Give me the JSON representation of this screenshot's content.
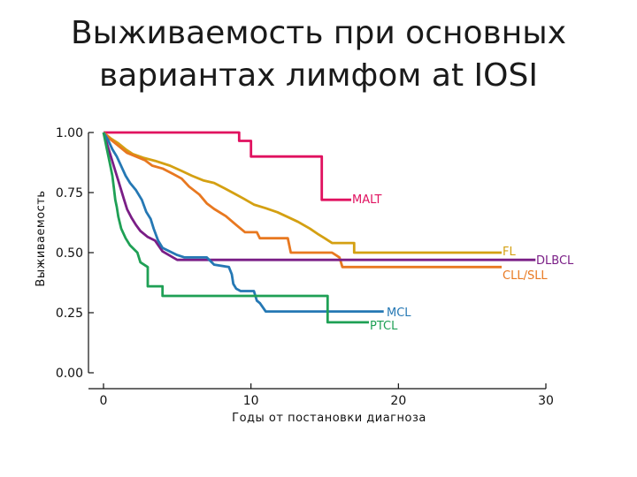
{
  "page": {
    "title_line1": "Выживаемость при основных",
    "title_line2": "вариантах лимфом at IOSI"
  },
  "chart_data": {
    "type": "line",
    "title": "Выживаемость при основных вариантах лимфом at IOSI",
    "xlabel": "Годы от постановки диагноза",
    "ylabel": "Выживаемость",
    "xlim": [
      0,
      30
    ],
    "ylim": [
      0,
      1
    ],
    "x_ticks": [
      0,
      10,
      20,
      30
    ],
    "x_tick_labels": [
      "0",
      "10",
      "20",
      "30"
    ],
    "y_ticks": [
      0,
      0.25,
      0.5,
      0.75,
      1
    ],
    "y_tick_labels": [
      "0.00",
      "0.25",
      "0.50",
      "0.75",
      "1.00"
    ],
    "grid": false,
    "series": [
      {
        "name": "MALT",
        "color": "#e0115f",
        "points": [
          [
            0,
            1.0
          ],
          [
            9.2,
            1.0
          ],
          [
            9.2,
            0.965
          ],
          [
            10,
            0.965
          ],
          [
            10,
            0.9
          ],
          [
            14.8,
            0.9
          ],
          [
            14.8,
            0.72
          ],
          [
            16.8,
            0.72
          ]
        ]
      },
      {
        "name": "FL",
        "color": "#d4a012",
        "points": [
          [
            0,
            1.0
          ],
          [
            0.5,
            0.975
          ],
          [
            1,
            0.955
          ],
          [
            1.5,
            0.93
          ],
          [
            2,
            0.91
          ],
          [
            2.7,
            0.895
          ],
          [
            3.5,
            0.882
          ],
          [
            4.5,
            0.862
          ],
          [
            5.3,
            0.84
          ],
          [
            6,
            0.82
          ],
          [
            6.8,
            0.8
          ],
          [
            7.5,
            0.79
          ],
          [
            8.2,
            0.768
          ],
          [
            8.8,
            0.748
          ],
          [
            9.5,
            0.725
          ],
          [
            10.2,
            0.7
          ],
          [
            11,
            0.685
          ],
          [
            11.8,
            0.668
          ],
          [
            12.5,
            0.648
          ],
          [
            13.2,
            0.628
          ],
          [
            14,
            0.6
          ],
          [
            14.6,
            0.575
          ],
          [
            15,
            0.56
          ],
          [
            15.5,
            0.54
          ],
          [
            17,
            0.54
          ],
          [
            17,
            0.5
          ],
          [
            27,
            0.5
          ]
        ]
      },
      {
        "name": "CLL/SLL",
        "color": "#e87820",
        "points": [
          [
            0,
            1.0
          ],
          [
            0.4,
            0.975
          ],
          [
            0.8,
            0.955
          ],
          [
            1.2,
            0.935
          ],
          [
            1.6,
            0.915
          ],
          [
            2.2,
            0.9
          ],
          [
            2.8,
            0.885
          ],
          [
            3.3,
            0.862
          ],
          [
            4,
            0.85
          ],
          [
            4.7,
            0.828
          ],
          [
            5.3,
            0.808
          ],
          [
            5.8,
            0.775
          ],
          [
            6.5,
            0.742
          ],
          [
            7,
            0.705
          ],
          [
            7.5,
            0.682
          ],
          [
            8.3,
            0.652
          ],
          [
            9,
            0.615
          ],
          [
            9.6,
            0.585
          ],
          [
            10.4,
            0.585
          ],
          [
            10.6,
            0.56
          ],
          [
            12.5,
            0.56
          ],
          [
            12.7,
            0.5
          ],
          [
            15.5,
            0.5
          ],
          [
            16,
            0.48
          ],
          [
            16.2,
            0.44
          ],
          [
            27,
            0.44
          ]
        ]
      },
      {
        "name": "DLBCL",
        "color": "#7a1e86",
        "points": [
          [
            0,
            1.0
          ],
          [
            0.2,
            0.96
          ],
          [
            0.4,
            0.92
          ],
          [
            0.6,
            0.88
          ],
          [
            0.8,
            0.84
          ],
          [
            1.0,
            0.8
          ],
          [
            1.2,
            0.76
          ],
          [
            1.4,
            0.72
          ],
          [
            1.6,
            0.68
          ],
          [
            1.9,
            0.645
          ],
          [
            2.2,
            0.615
          ],
          [
            2.5,
            0.59
          ],
          [
            3.0,
            0.565
          ],
          [
            3.5,
            0.55
          ],
          [
            4.0,
            0.505
          ],
          [
            5.0,
            0.47
          ],
          [
            5.5,
            0.47
          ],
          [
            29.3,
            0.47
          ]
        ]
      },
      {
        "name": "MCL",
        "color": "#2578b4",
        "points": [
          [
            0,
            1.0
          ],
          [
            0.3,
            0.97
          ],
          [
            0.6,
            0.93
          ],
          [
            0.9,
            0.9
          ],
          [
            1.2,
            0.86
          ],
          [
            1.5,
            0.82
          ],
          [
            1.8,
            0.79
          ],
          [
            2.2,
            0.76
          ],
          [
            2.6,
            0.72
          ],
          [
            2.9,
            0.67
          ],
          [
            3.2,
            0.64
          ],
          [
            3.4,
            0.6
          ],
          [
            3.7,
            0.55
          ],
          [
            4,
            0.52
          ],
          [
            5,
            0.49
          ],
          [
            5.5,
            0.48
          ],
          [
            7,
            0.48
          ],
          [
            7.5,
            0.45
          ],
          [
            8.5,
            0.44
          ],
          [
            8.7,
            0.41
          ],
          [
            8.8,
            0.37
          ],
          [
            9,
            0.35
          ],
          [
            9.3,
            0.34
          ],
          [
            10.2,
            0.34
          ],
          [
            10.4,
            0.3
          ],
          [
            10.6,
            0.29
          ],
          [
            11,
            0.255
          ],
          [
            19,
            0.255
          ]
        ]
      },
      {
        "name": "PTCL",
        "color": "#1fa055",
        "points": [
          [
            0,
            1.0
          ],
          [
            0.2,
            0.94
          ],
          [
            0.4,
            0.88
          ],
          [
            0.6,
            0.82
          ],
          [
            0.7,
            0.77
          ],
          [
            0.8,
            0.72
          ],
          [
            0.9,
            0.69
          ],
          [
            1.0,
            0.65
          ],
          [
            1.2,
            0.6
          ],
          [
            1.5,
            0.56
          ],
          [
            1.8,
            0.53
          ],
          [
            2.3,
            0.5
          ],
          [
            2.5,
            0.46
          ],
          [
            3,
            0.44
          ],
          [
            3,
            0.36
          ],
          [
            4,
            0.36
          ],
          [
            4,
            0.32
          ],
          [
            15.2,
            0.32
          ],
          [
            15.2,
            0.21
          ],
          [
            18,
            0.21
          ]
        ]
      }
    ],
    "annotations": [
      "MALT",
      "FL",
      "DLBCL",
      "CLL/SLL",
      "MCL",
      "PTCL"
    ]
  }
}
